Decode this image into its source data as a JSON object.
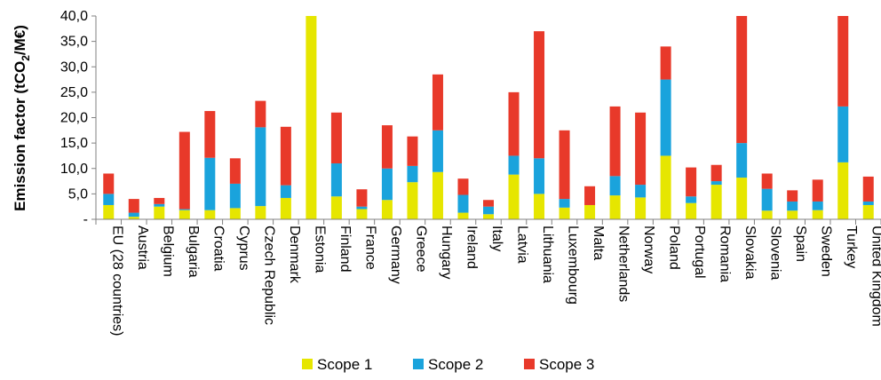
{
  "chart_data": {
    "type": "bar",
    "stacked": true,
    "ylabel_prefix": "Emission factor (tCO",
    "ylabel_sub": "2",
    "ylabel_suffix": "/M€)",
    "ylim": [
      0,
      40
    ],
    "yticks": [
      "-",
      "5,0",
      "10,0",
      "15,0",
      "20,0",
      "25,0",
      "30,0",
      "35,0",
      "40,0"
    ],
    "grid": false,
    "legend_position": "bottom",
    "categories": [
      "EU (28 countries)",
      "Austria",
      "Belgium",
      "Bulgaria",
      "Croatia",
      "Cyprus",
      "Czech Republic",
      "Denmark",
      "Estonia",
      "Finland",
      "France",
      "Germany",
      "Greece",
      "Hungary",
      "Ireland",
      "Italy",
      "Latvia",
      "Lithuania",
      "Luxembourg",
      "Malta",
      "Netherlands",
      "Norway",
      "Poland",
      "Portugal",
      "Romania",
      "Slovakia",
      "Slovenia",
      "Spain",
      "Sweden",
      "Turkey",
      "United Kingdom"
    ],
    "series": [
      {
        "name": "Scope 1",
        "color": "#e6e600",
        "values": [
          2.8,
          0.5,
          2.5,
          1.8,
          1.8,
          2.2,
          2.6,
          4.2,
          40.0,
          4.5,
          2.0,
          3.8,
          7.3,
          9.3,
          1.3,
          1.0,
          8.8,
          5.0,
          2.3,
          2.8,
          4.7,
          4.3,
          12.5,
          3.2,
          6.8,
          8.2,
          1.7,
          1.7,
          1.8,
          11.2,
          2.8
        ]
      },
      {
        "name": "Scope 2",
        "color": "#1aa3dc",
        "values": [
          2.2,
          0.8,
          0.5,
          0.2,
          10.3,
          4.8,
          15.5,
          2.5,
          0.0,
          6.5,
          0.5,
          6.2,
          3.2,
          8.2,
          3.5,
          1.5,
          3.7,
          7.0,
          1.7,
          0.0,
          3.8,
          2.5,
          15.0,
          1.3,
          0.7,
          6.8,
          4.3,
          1.8,
          1.7,
          11.0,
          0.7
        ]
      },
      {
        "name": "Scope 3",
        "color": "#e8392a",
        "values": [
          4.0,
          2.7,
          1.2,
          15.2,
          9.2,
          5.0,
          5.2,
          11.5,
          0.0,
          10.0,
          3.4,
          8.5,
          5.8,
          11.0,
          3.2,
          1.3,
          12.5,
          25.0,
          13.5,
          3.7,
          13.7,
          14.2,
          6.5,
          5.7,
          3.2,
          25.0,
          3.0,
          2.2,
          4.3,
          17.8,
          4.9
        ]
      }
    ]
  }
}
